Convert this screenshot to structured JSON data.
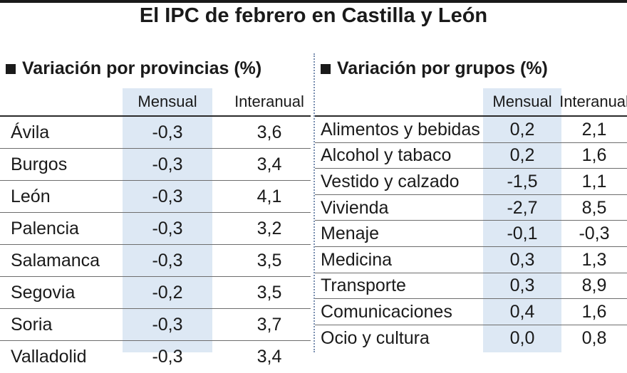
{
  "title": "El IPC de febrero en Castilla y León",
  "provincias": {
    "title": "Variación por provincias (%)",
    "col_mensual": "Mensual",
    "col_interanual": "Interanual",
    "rows": [
      {
        "name": "Ávila",
        "mensual": "-0,3",
        "interanual": "3,6"
      },
      {
        "name": "Burgos",
        "mensual": "-0,3",
        "interanual": "3,4"
      },
      {
        "name": "León",
        "mensual": "-0,3",
        "interanual": "4,1"
      },
      {
        "name": "Palencia",
        "mensual": "-0,3",
        "interanual": "3,2"
      },
      {
        "name": "Salamanca",
        "mensual": "-0,3",
        "interanual": "3,5"
      },
      {
        "name": "Segovia",
        "mensual": "-0,2",
        "interanual": "3,5"
      },
      {
        "name": "Soria",
        "mensual": "-0,3",
        "interanual": "3,7"
      },
      {
        "name": "Valladolid",
        "mensual": "-0,3",
        "interanual": "3,4"
      }
    ]
  },
  "grupos": {
    "title": "Variación por grupos (%)",
    "col_mensual": "Mensual",
    "col_interanual": "Interanual",
    "rows": [
      {
        "name": "Alimentos y bebidas",
        "mensual": "0,2",
        "interanual": "2,1"
      },
      {
        "name": "Alcohol y tabaco",
        "mensual": "0,2",
        "interanual": "1,6"
      },
      {
        "name": "Vestido y calzado",
        "mensual": "-1,5",
        "interanual": "1,1"
      },
      {
        "name": "Vivienda",
        "mensual": "-2,7",
        "interanual": "8,5"
      },
      {
        "name": "Menaje",
        "mensual": "-0,1",
        "interanual": "-0,3"
      },
      {
        "name": "Medicina",
        "mensual": "0,3",
        "interanual": "1,3"
      },
      {
        "name": "Transporte",
        "mensual": "0,3",
        "interanual": "8,9"
      },
      {
        "name": "Comunicaciones",
        "mensual": "0,4",
        "interanual": "1,6"
      },
      {
        "name": "Ocio y cultura",
        "mensual": "0,0",
        "interanual": "0,8"
      }
    ]
  },
  "colors": {
    "accent_column": "#dde8f4",
    "text": "#1a1a1a"
  },
  "chart_data": [
    {
      "type": "table",
      "title": "Variación por provincias (%)",
      "columns": [
        "Mensual",
        "Interanual"
      ],
      "categories": [
        "Ávila",
        "Burgos",
        "León",
        "Palencia",
        "Salamanca",
        "Segovia",
        "Soria",
        "Valladolid"
      ],
      "series": [
        {
          "name": "Mensual",
          "values": [
            -0.3,
            -0.3,
            -0.3,
            -0.3,
            -0.3,
            -0.2,
            -0.3,
            -0.3
          ]
        },
        {
          "name": "Interanual",
          "values": [
            3.6,
            3.4,
            4.1,
            3.2,
            3.5,
            3.5,
            3.7,
            3.4
          ]
        }
      ]
    },
    {
      "type": "table",
      "title": "Variación por grupos (%)",
      "columns": [
        "Mensual",
        "Interanual"
      ],
      "categories": [
        "Alimentos y bebidas",
        "Alcohol y tabaco",
        "Vestido y calzado",
        "Vivienda",
        "Menaje",
        "Medicina",
        "Transporte",
        "Comunicaciones",
        "Ocio y cultura"
      ],
      "series": [
        {
          "name": "Mensual",
          "values": [
            0.2,
            0.2,
            -1.5,
            -2.7,
            -0.1,
            0.3,
            0.3,
            0.4,
            0.0
          ]
        },
        {
          "name": "Interanual",
          "values": [
            2.1,
            1.6,
            1.1,
            8.5,
            -0.3,
            1.3,
            8.9,
            1.6,
            0.8
          ]
        }
      ]
    }
  ]
}
